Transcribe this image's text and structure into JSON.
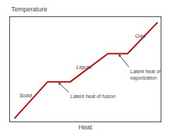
{
  "chart_data": {
    "type": "line",
    "ylabel": "Temperature",
    "xlabel": "Heat",
    "x": [
      0.3,
      2.5,
      4.0,
      6.5,
      7.8,
      9.8
    ],
    "values": [
      0.3,
      3.8,
      3.8,
      6.5,
      6.5,
      9.5
    ],
    "color": "#cc0000",
    "xlim": [
      0,
      10
    ],
    "ylim": [
      0,
      10
    ],
    "xticks": [],
    "yticks": [],
    "tick_labels": false,
    "grid": false,
    "annotations": [
      {
        "text": "Solid",
        "x": 0.5,
        "y": 2.5
      },
      {
        "text": "Liquid",
        "x": 4.3,
        "y": 5.2
      },
      {
        "text": "Gas",
        "x": 8.2,
        "y": 8.2
      },
      {
        "text": "Latent heat of fusion",
        "x": 3.2,
        "y": 3.75,
        "ax": 3.9,
        "ay": 2.8
      },
      {
        "text": "Latent heat of\nvaporization",
        "x": 7.2,
        "y": 6.45,
        "ax": 7.9,
        "ay": 5.2
      }
    ]
  }
}
